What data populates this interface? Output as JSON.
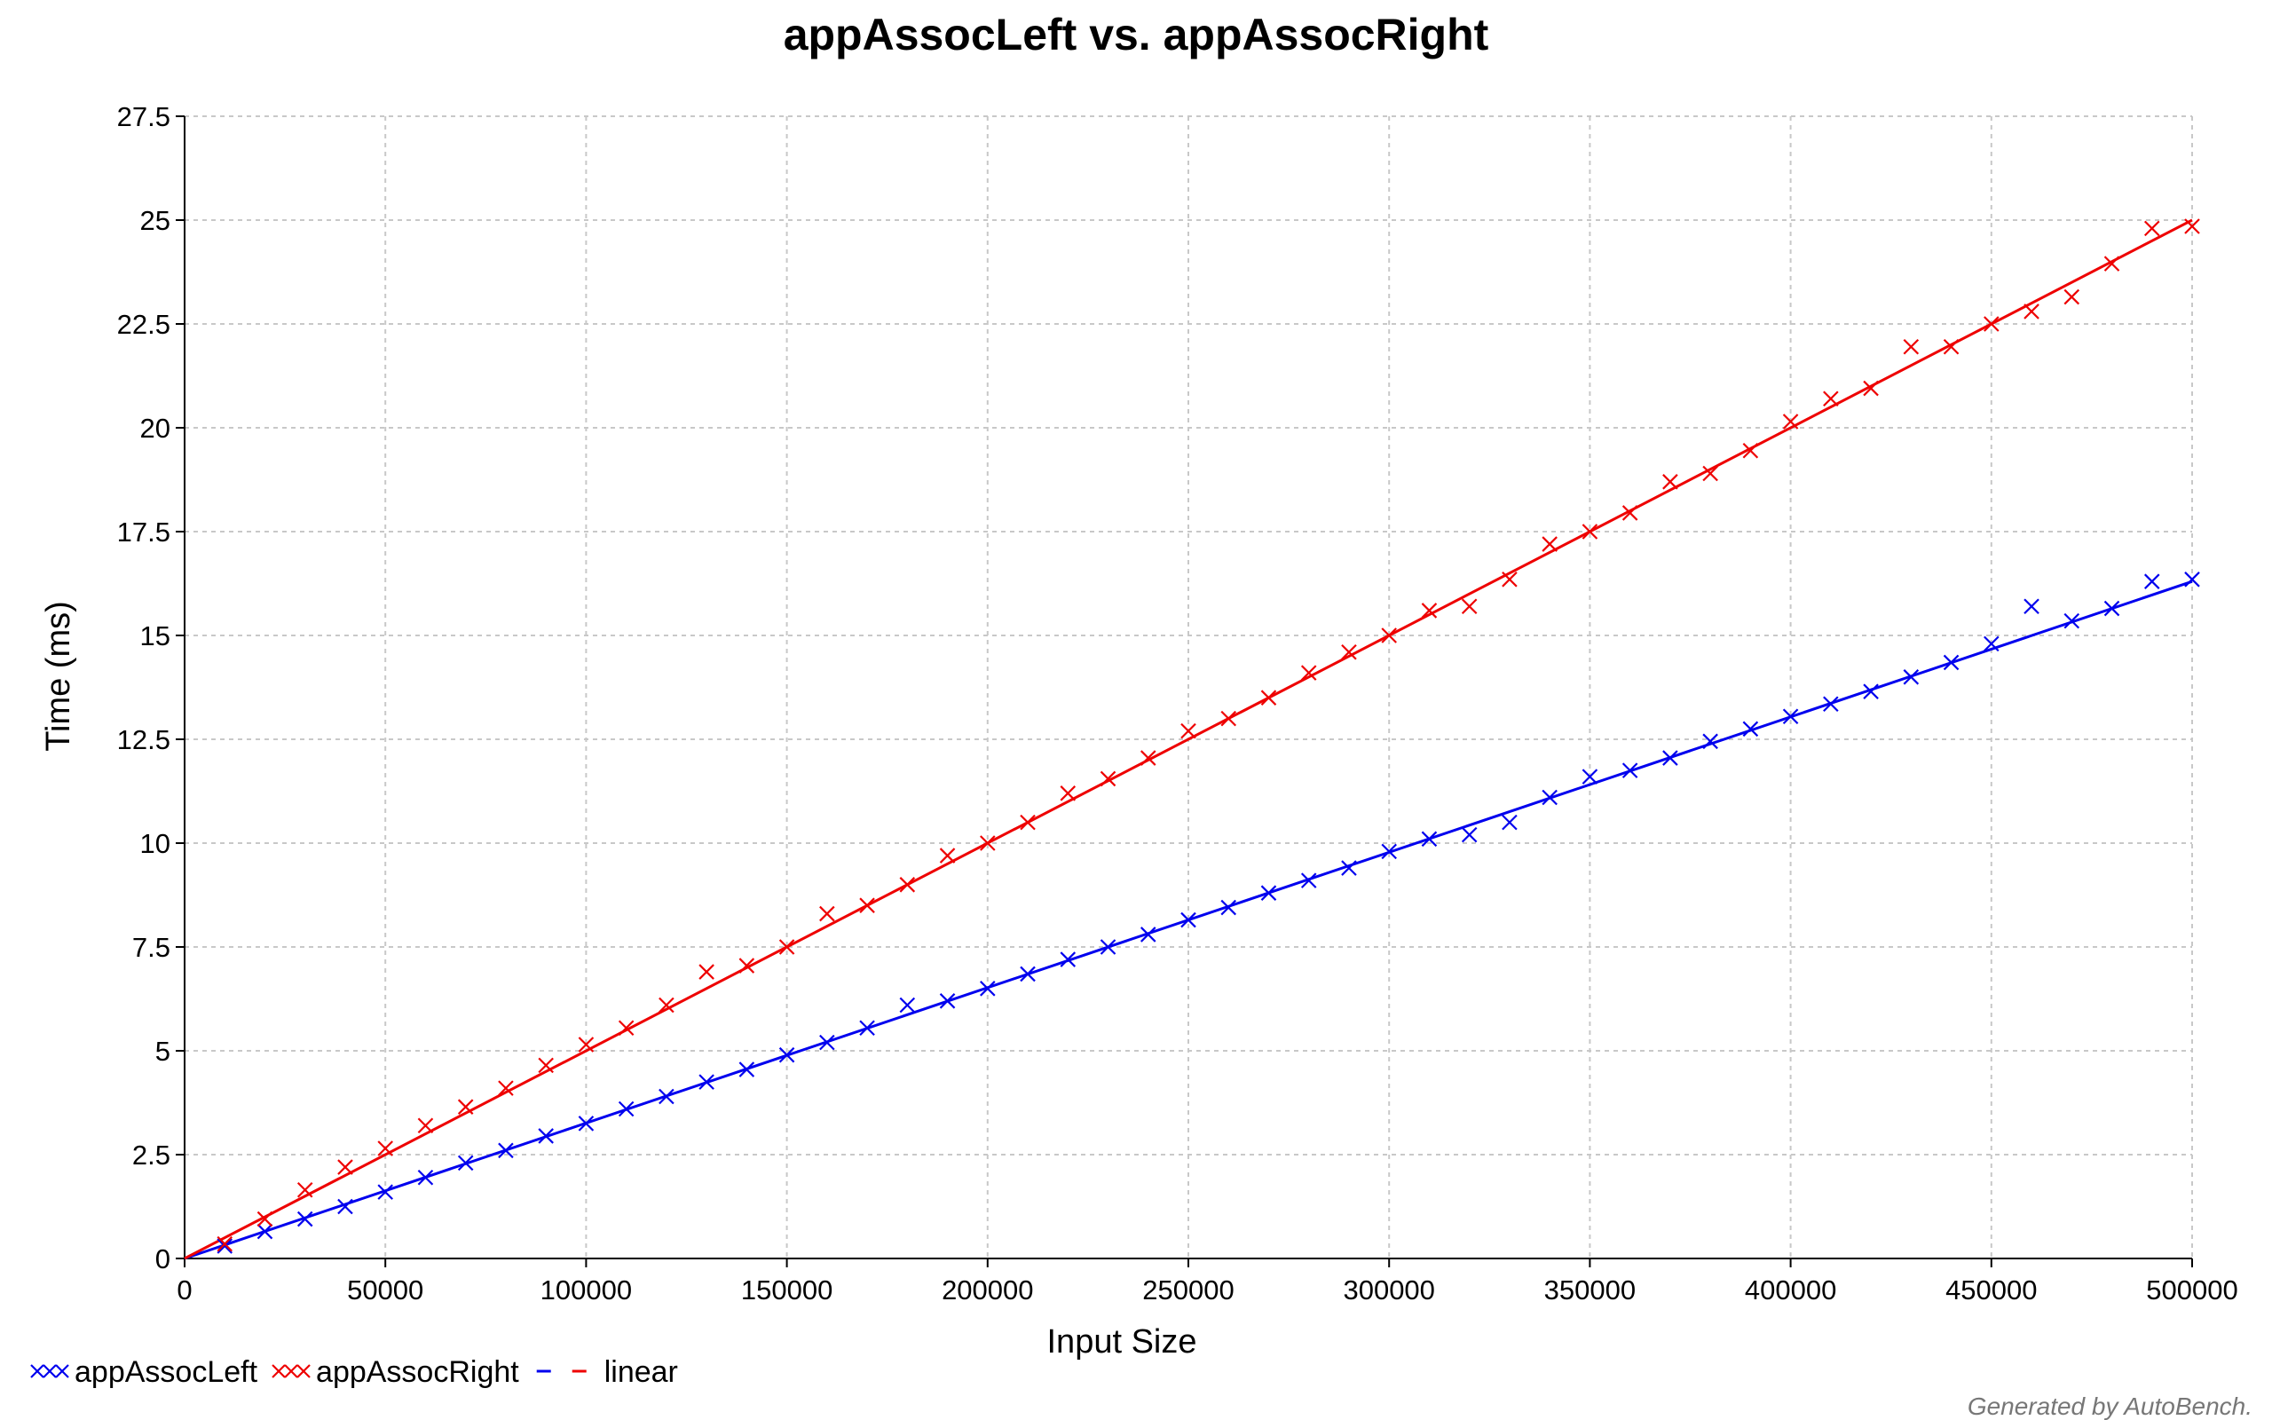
{
  "chart_data": {
    "type": "scatter",
    "title": "appAssocLeft vs. appAssocRight",
    "xlabel": "Input Size",
    "ylabel": "Time (ms)",
    "xlim": [
      0,
      500000
    ],
    "ylim": [
      0,
      27.5
    ],
    "xticks": [
      "0",
      "50000",
      "100000",
      "150000",
      "200000",
      "250000",
      "300000",
      "350000",
      "400000",
      "450000",
      "500000"
    ],
    "yticks": [
      "0",
      "2.5",
      "5",
      "7.5",
      "10",
      "12.5",
      "15",
      "17.5",
      "20",
      "22.5",
      "25",
      "27.5"
    ],
    "grid": true,
    "legend_position": "bottom-left",
    "series": [
      {
        "name": "appAssocLeft",
        "color": "#0000ee",
        "marker": "x",
        "x": [
          10000,
          20000,
          30000,
          40000,
          50000,
          60000,
          70000,
          80000,
          90000,
          100000,
          110000,
          120000,
          130000,
          140000,
          150000,
          160000,
          170000,
          180000,
          190000,
          200000,
          210000,
          220000,
          230000,
          240000,
          250000,
          260000,
          270000,
          280000,
          290000,
          300000,
          310000,
          320000,
          330000,
          340000,
          350000,
          360000,
          370000,
          380000,
          390000,
          400000,
          410000,
          420000,
          430000,
          440000,
          450000,
          460000,
          470000,
          480000,
          490000,
          500000
        ],
        "y": [
          0.3,
          0.65,
          0.95,
          1.25,
          1.6,
          1.95,
          2.3,
          2.6,
          2.95,
          3.25,
          3.6,
          3.9,
          4.25,
          4.55,
          4.9,
          5.2,
          5.55,
          6.1,
          6.2,
          6.5,
          6.85,
          7.2,
          7.5,
          7.8,
          8.15,
          8.45,
          8.8,
          9.1,
          9.4,
          9.8,
          10.1,
          10.2,
          10.5,
          11.1,
          11.6,
          11.75,
          12.05,
          12.45,
          12.75,
          13.05,
          13.35,
          13.65,
          14.0,
          14.35,
          14.8,
          15.7,
          15.35,
          15.65,
          16.3,
          16.35
        ]
      },
      {
        "name": "appAssocRight",
        "color": "#ee0000",
        "marker": "x",
        "x": [
          10000,
          20000,
          30000,
          40000,
          50000,
          60000,
          70000,
          80000,
          90000,
          100000,
          110000,
          120000,
          130000,
          140000,
          150000,
          160000,
          170000,
          180000,
          190000,
          200000,
          210000,
          220000,
          230000,
          240000,
          250000,
          260000,
          270000,
          280000,
          290000,
          300000,
          310000,
          320000,
          330000,
          340000,
          350000,
          360000,
          370000,
          380000,
          390000,
          400000,
          410000,
          420000,
          430000,
          440000,
          450000,
          460000,
          470000,
          480000,
          490000,
          500000
        ],
        "y": [
          0.35,
          0.95,
          1.65,
          2.2,
          2.65,
          3.2,
          3.65,
          4.1,
          4.65,
          5.15,
          5.55,
          6.1,
          6.9,
          7.05,
          7.5,
          8.3,
          8.5,
          9.0,
          9.7,
          10.0,
          10.5,
          11.2,
          11.55,
          12.05,
          12.7,
          13.0,
          13.5,
          14.1,
          14.6,
          15.0,
          15.6,
          15.7,
          16.35,
          17.2,
          17.5,
          17.95,
          18.7,
          18.9,
          19.45,
          20.15,
          20.7,
          20.95,
          21.95,
          21.95,
          22.5,
          22.8,
          23.15,
          23.95,
          24.8,
          24.85
        ]
      }
    ],
    "fits": [
      {
        "type": "linear",
        "color": "#0000ee",
        "slope_per_unit": 3.26e-05,
        "intercept": 0
      },
      {
        "type": "linear",
        "color": "#ee0000",
        "slope_per_unit": 5e-05,
        "intercept": 0
      }
    ],
    "legend": [
      {
        "label": "appAssocLeft",
        "color": "#0000ee",
        "glyph": "xx"
      },
      {
        "label": "appAssocRight",
        "color": "#ee0000",
        "glyph": "xx"
      },
      {
        "label": "linear",
        "colors": [
          "#0000ee",
          "#ee0000"
        ],
        "glyph": "dash"
      }
    ],
    "credit": "Generated by AutoBench."
  }
}
